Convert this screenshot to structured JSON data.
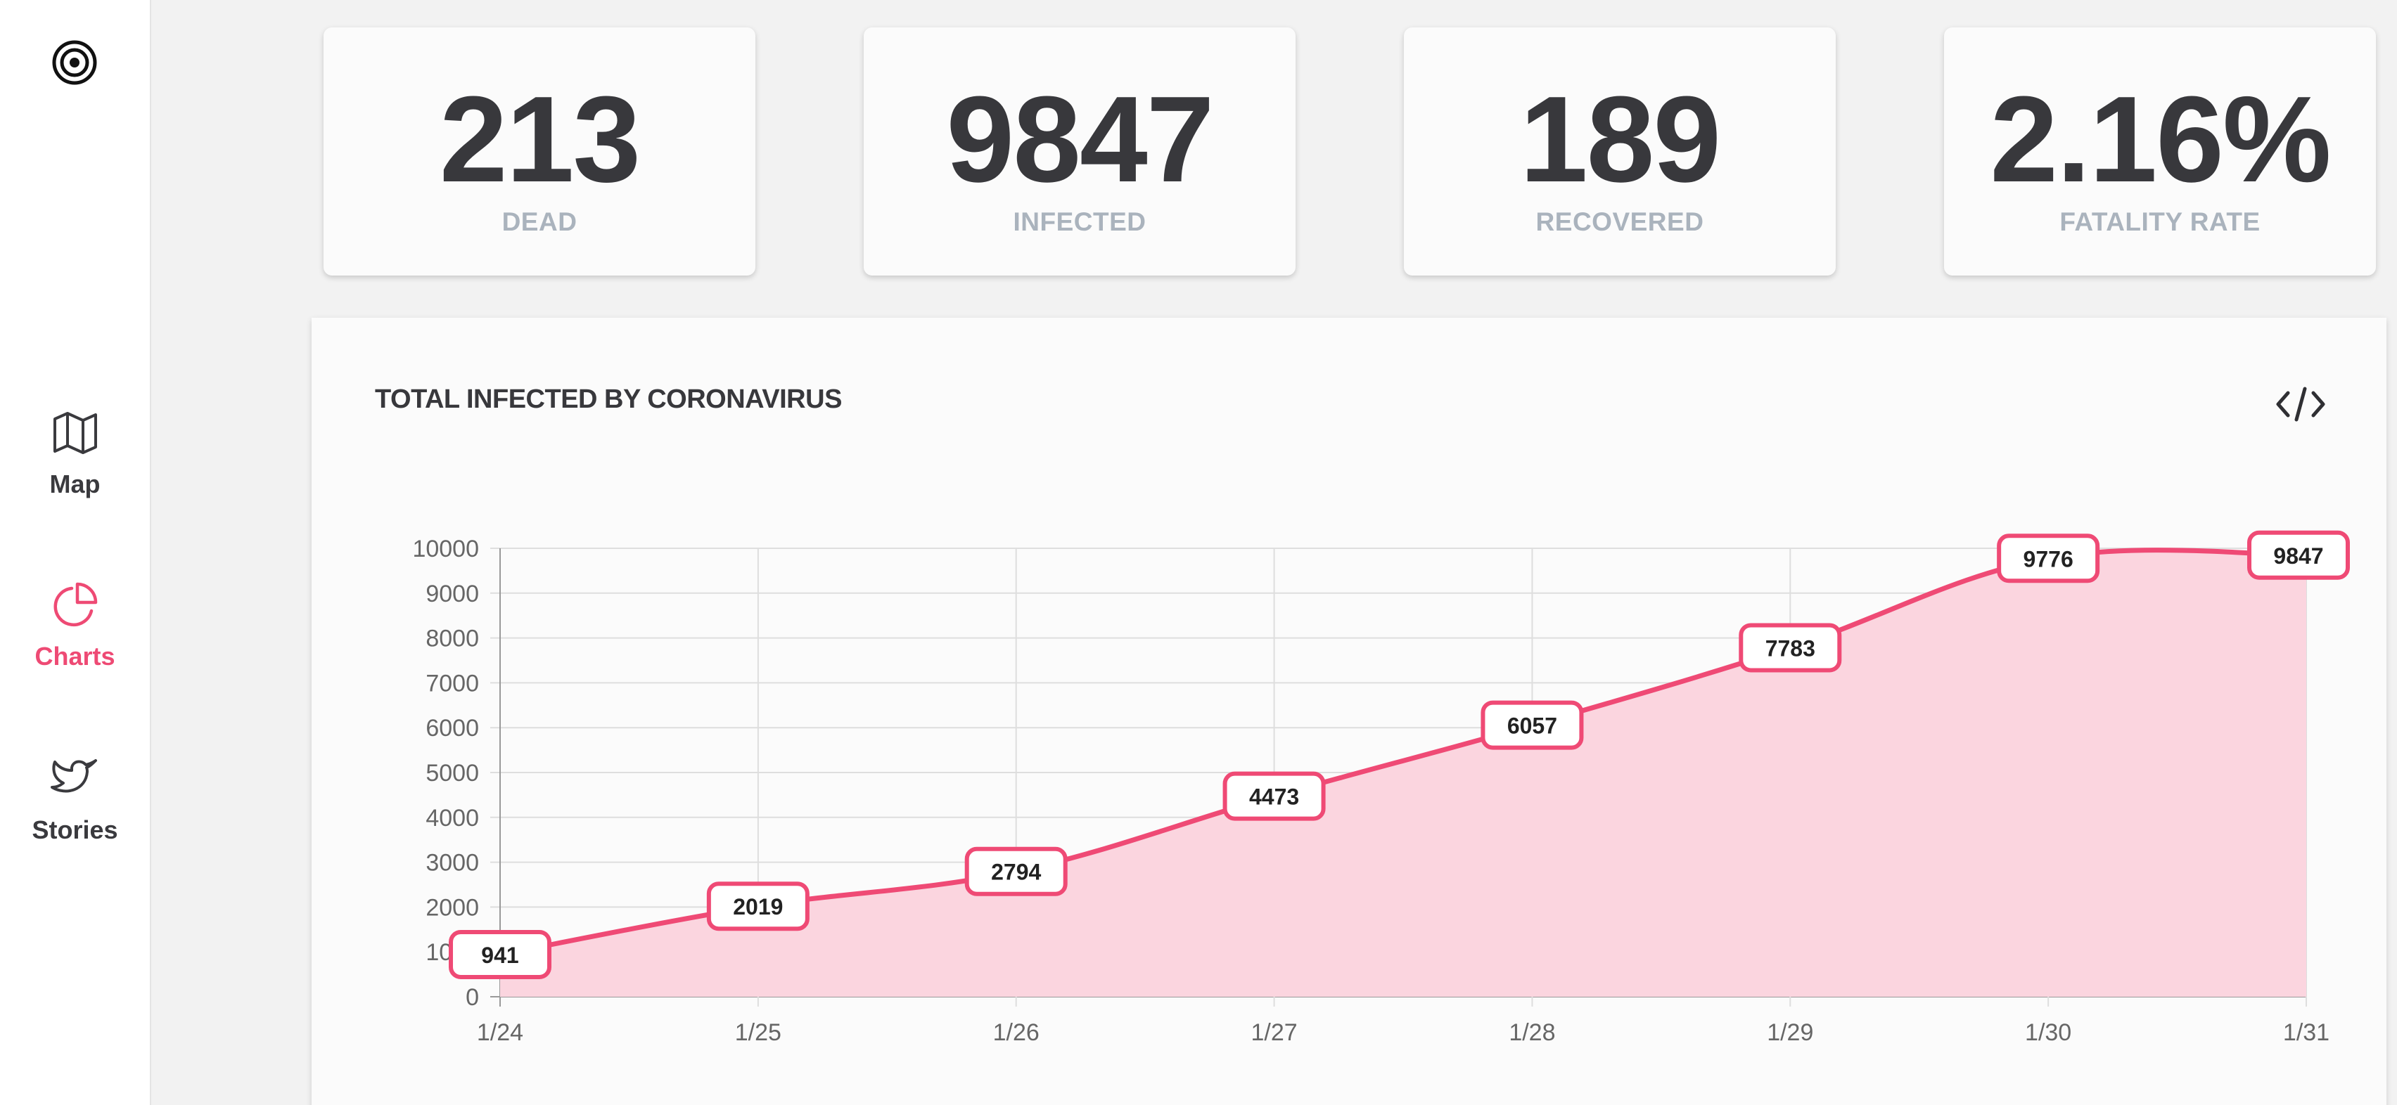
{
  "sidebar": {
    "logo": "target-icon",
    "items": [
      {
        "label": "Map",
        "icon": "map-icon",
        "active": false
      },
      {
        "label": "Charts",
        "icon": "pie-chart-icon",
        "active": true
      },
      {
        "label": "Stories",
        "icon": "twitter-bird-icon",
        "active": false
      }
    ]
  },
  "stats": [
    {
      "value": "213",
      "label": "DEAD"
    },
    {
      "value": "9847",
      "label": "INFECTED"
    },
    {
      "value": "189",
      "label": "RECOVERED"
    },
    {
      "value": "2.16%",
      "label": "FATALITY RATE"
    }
  ],
  "chart": {
    "title": "TOTAL INFECTED BY CORONAVIRUS",
    "embed_icon": "code-icon"
  },
  "chart_data": {
    "type": "area",
    "title": "TOTAL INFECTED BY CORONAVIRUS",
    "categories": [
      "1/24",
      "1/25",
      "1/26",
      "1/27",
      "1/28",
      "1/29",
      "1/30",
      "1/31"
    ],
    "series": [
      {
        "values": [
          941,
          2019,
          2794,
          4473,
          6057,
          7783,
          9776,
          9847
        ]
      }
    ],
    "yticks": [
      0,
      1000,
      2000,
      3000,
      4000,
      5000,
      6000,
      7000,
      8000,
      9000,
      10000
    ],
    "ylim": [
      0,
      10000
    ],
    "grid": true,
    "data_labels": true,
    "colors": {
      "line": "#ef4a75",
      "fill": "#fbd5df",
      "accent": "#ee4a74"
    }
  }
}
